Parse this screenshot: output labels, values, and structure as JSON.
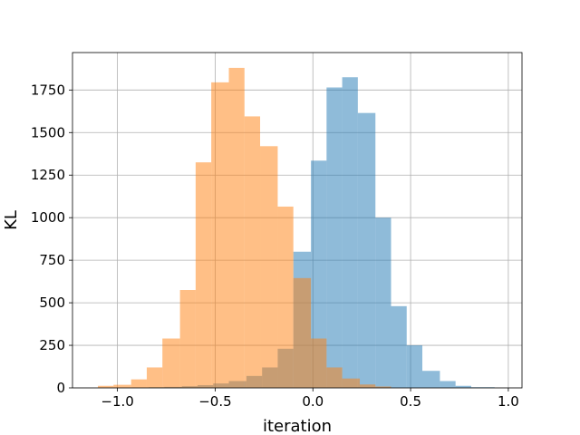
{
  "chart_data": {
    "type": "histogram",
    "title": "",
    "xlabel": "iteration",
    "ylabel": "KL",
    "xlim": [
      -1.23,
      1.07
    ],
    "ylim": [
      0,
      1970
    ],
    "grid": true,
    "legend": "none",
    "xticks": [
      -1.0,
      -0.5,
      0.0,
      0.5,
      1.0
    ],
    "xtick_labels": [
      "−1.0",
      "−0.5",
      "0.0",
      "0.5",
      "1.0"
    ],
    "yticks": [
      0,
      250,
      500,
      750,
      1000,
      1250,
      1500,
      1750
    ],
    "ytick_labels": [
      "0",
      "250",
      "500",
      "750",
      "1000",
      "1250",
      "1500",
      "1750"
    ],
    "series": [
      {
        "color": "#1f77b4",
        "alpha": 0.5,
        "bin_edges": [
          -0.92,
          -0.84,
          -0.76,
          -0.67,
          -0.59,
          -0.51,
          -0.43,
          -0.34,
          -0.26,
          -0.18,
          -0.1,
          -0.01,
          0.07,
          0.15,
          0.23,
          0.32,
          0.4,
          0.48,
          0.56,
          0.65,
          0.73,
          0.81,
          0.93
        ],
        "counts": [
          2,
          4,
          6,
          10,
          16,
          26,
          40,
          70,
          120,
          230,
          800,
          1335,
          1765,
          1825,
          1615,
          1000,
          480,
          250,
          100,
          40,
          12,
          4
        ]
      },
      {
        "color": "#ff7f0e",
        "alpha": 0.5,
        "bin_edges": [
          -1.1,
          -1.02,
          -0.93,
          -0.85,
          -0.77,
          -0.68,
          -0.6,
          -0.52,
          -0.43,
          -0.35,
          -0.27,
          -0.18,
          -0.1,
          -0.01,
          0.07,
          0.15,
          0.24,
          0.32,
          0.4
        ],
        "counts": [
          12,
          18,
          50,
          120,
          290,
          575,
          1325,
          1795,
          1880,
          1595,
          1420,
          1065,
          645,
          290,
          120,
          55,
          20,
          8
        ]
      }
    ]
  }
}
